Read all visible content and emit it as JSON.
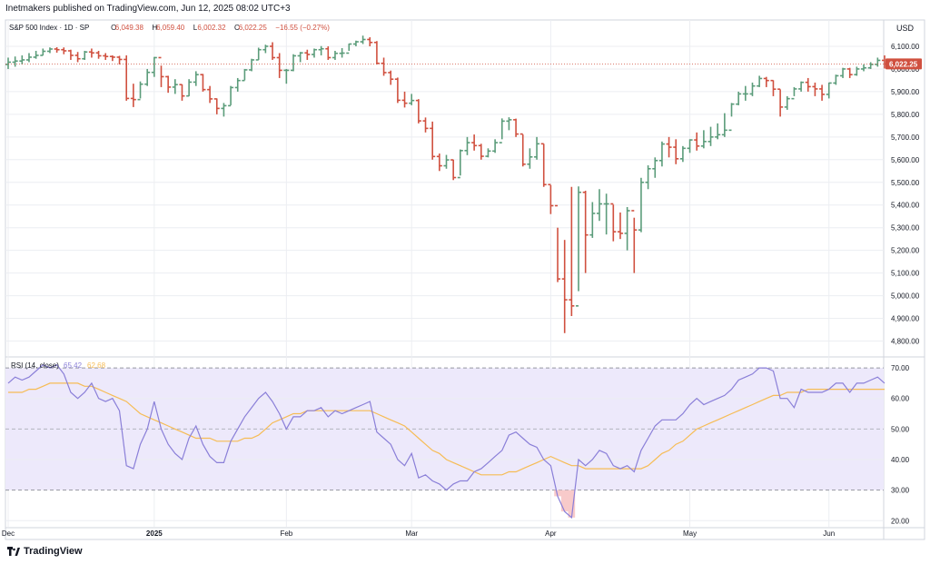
{
  "header": {
    "publisher_text": "Inetmakers published on TradingView.com, Jun 12, 2025 08:02 UTC+3"
  },
  "footer": {
    "brand": "TradingView"
  },
  "colors": {
    "up": "#5b9c7a",
    "down": "#d0503f",
    "rsi_line": "#8a7fd8",
    "rsi_ma": "#f6bc55",
    "rsi_band": "#ede9fb",
    "grid": "#eceef2",
    "price_tag": "#d0503f"
  },
  "chart_data": [
    {
      "type": "ohlc",
      "title": "S&P 500 Index · 1D · SP",
      "legend": {
        "open_label": "O",
        "open": "6,049.38",
        "high_label": "H",
        "high": "6,059.40",
        "low_label": "L",
        "low": "6,002.32",
        "close_label": "C",
        "close": "6,022.25",
        "change": "−16.55 (−0.27%)"
      },
      "currency_label": "USD",
      "last_price_label": "6,022.25",
      "last_price": 6022.25,
      "ylim": [
        4750,
        6160
      ],
      "y_ticks": [
        6100,
        6000,
        5900,
        5800,
        5700,
        5600,
        5500,
        5400,
        5300,
        5200,
        5100,
        5000,
        4900,
        4800
      ],
      "y_tick_labels": [
        "6,100.00",
        "6,000.00",
        "5,900.00",
        "5,800.00",
        "5,700.00",
        "5,600.00",
        "5,500.00",
        "5,400.00",
        "5,300.00",
        "5,200.00",
        "5,100.00",
        "5,000.00",
        "4,900.00",
        "4,800.00"
      ],
      "x_labels": [
        {
          "index": 0,
          "label": "Dec",
          "bold": false
        },
        {
          "index": 21,
          "label": "2025",
          "bold": true
        },
        {
          "index": 40,
          "label": "Feb",
          "bold": false
        },
        {
          "index": 58,
          "label": "Mar",
          "bold": false
        },
        {
          "index": 78,
          "label": "Apr",
          "bold": false
        },
        {
          "index": 98,
          "label": "May",
          "bold": false
        },
        {
          "index": 118,
          "label": "Jun",
          "bold": false
        }
      ],
      "closes": [
        6030,
        6035,
        6040,
        6052,
        6060,
        6078,
        6088,
        6085,
        6080,
        6060,
        6045,
        6075,
        6071,
        6058,
        6055,
        6052,
        6042,
        5870,
        5865,
        5933,
        5985,
        6050,
        5966,
        5920,
        5931,
        5881,
        5942,
        5975,
        5909,
        5868,
        5826,
        5838,
        5918,
        5949,
        5996,
        6040,
        6085,
        6100,
        6050,
        5994,
        5994,
        6058,
        6071,
        6064,
        6085,
        6089,
        6050,
        6069,
        6070,
        6110,
        6120,
        6130,
        6117,
        6025,
        5984,
        5955,
        5862,
        5849,
        5861,
        5771,
        5738,
        5614,
        5573,
        5599,
        5521,
        5640,
        5675,
        5662,
        5615,
        5638,
        5675,
        5770,
        5776,
        5713,
        5580,
        5612,
        5670,
        5490,
        5397,
        5074,
        4982,
        4955,
        5456,
        5268,
        5363,
        5405,
        5405,
        5282,
        5275,
        5375,
        5290,
        5500,
        5560,
        5596,
        5669,
        5655,
        5604,
        5650,
        5687,
        5660,
        5680,
        5700,
        5710,
        5730,
        5845,
        5890,
        5890,
        5925,
        5958,
        5949,
        5911,
        5832,
        5869,
        5912,
        5941,
        5922,
        5912,
        5888,
        5938,
        5970,
        6000,
        5975,
        6000,
        6005,
        6020,
        6038,
        6022
      ],
      "highs": [
        6050,
        6055,
        6060,
        6070,
        6080,
        6090,
        6095,
        6096,
        6095,
        6085,
        6075,
        6080,
        6090,
        6080,
        6070,
        6060,
        6058,
        6060,
        5935,
        5945,
        6000,
        6053,
        6015,
        5970,
        5955,
        5932,
        5955,
        5990,
        5978,
        5925,
        5870,
        5850,
        5925,
        5960,
        6000,
        6045,
        6094,
        6107,
        6118,
        6070,
        6000,
        6065,
        6075,
        6085,
        6090,
        6101,
        6100,
        6080,
        6092,
        6112,
        6125,
        6147,
        6140,
        6123,
        6050,
        5993,
        5962,
        5900,
        5890,
        5867,
        5786,
        5768,
        5627,
        5621,
        5600,
        5645,
        5700,
        5711,
        5670,
        5650,
        5690,
        5782,
        5787,
        5781,
        5711,
        5650,
        5700,
        5670,
        5488,
        5300,
        5246,
        5480,
        5482,
        5463,
        5413,
        5470,
        5450,
        5402,
        5367,
        5391,
        5344,
        5520,
        5575,
        5610,
        5680,
        5700,
        5690,
        5660,
        5690,
        5720,
        5730,
        5745,
        5760,
        5805,
        5850,
        5900,
        5925,
        5940,
        5970,
        5965,
        5950,
        5910,
        5880,
        5920,
        5945,
        5960,
        5940,
        5930,
        5940,
        5975,
        6005,
        6005,
        6010,
        6020,
        6030,
        6050,
        6060
      ],
      "lows": [
        6000,
        6010,
        6020,
        6030,
        6045,
        6060,
        6070,
        6072,
        6065,
        6040,
        6030,
        6040,
        6050,
        6045,
        6040,
        6035,
        6020,
        5860,
        5832,
        5870,
        5925,
        5965,
        5920,
        5895,
        5890,
        5860,
        5880,
        5925,
        5900,
        5850,
        5800,
        5790,
        5840,
        5900,
        5950,
        5990,
        6040,
        6070,
        6040,
        5960,
        5935,
        5990,
        6030,
        6040,
        6050,
        6060,
        6040,
        6040,
        6050,
        6080,
        6100,
        6110,
        6100,
        6020,
        5970,
        5930,
        5850,
        5830,
        5840,
        5760,
        5720,
        5600,
        5550,
        5560,
        5510,
        5530,
        5620,
        5640,
        5600,
        5610,
        5630,
        5690,
        5730,
        5700,
        5570,
        5560,
        5600,
        5480,
        5360,
        5060,
        4835,
        4910,
        5020,
        5100,
        5255,
        5330,
        5270,
        5240,
        5250,
        5200,
        5100,
        5280,
        5470,
        5520,
        5570,
        5610,
        5580,
        5590,
        5630,
        5640,
        5650,
        5660,
        5690,
        5700,
        5790,
        5840,
        5860,
        5880,
        5920,
        5920,
        5880,
        5790,
        5820,
        5880,
        5900,
        5900,
        5880,
        5860,
        5870,
        5930,
        5960,
        5960,
        5970,
        5990,
        6000,
        6010,
        6002
      ]
    },
    {
      "type": "line",
      "title": "RSI (14, close)",
      "value_rsi": "65.42",
      "value_ma": "62.68",
      "ylim": [
        18,
        73
      ],
      "y_ticks": [
        70,
        60,
        50,
        40,
        30,
        20
      ],
      "y_tick_labels": [
        "70.00",
        "60.00",
        "50.00",
        "40.00",
        "30.00",
        "20.00"
      ],
      "band": [
        30,
        70
      ],
      "series": [
        {
          "name": "RSI",
          "values": [
            65,
            67,
            66,
            67,
            69,
            71,
            70,
            71,
            68,
            62,
            60,
            62,
            65,
            60,
            59,
            60,
            56,
            38,
            37,
            45,
            50,
            59,
            50,
            45,
            42,
            40,
            47,
            51,
            45,
            41,
            39,
            39,
            46,
            50,
            54,
            57,
            60,
            62,
            59,
            55,
            50,
            54,
            54,
            56,
            56,
            57,
            54,
            56,
            55,
            56,
            57,
            58,
            59,
            49,
            47,
            45,
            40,
            38,
            42,
            34,
            35,
            33,
            32,
            30,
            32,
            33,
            33,
            36,
            37,
            39,
            41,
            43,
            48,
            49,
            47,
            45,
            44,
            40,
            38,
            28,
            23,
            21,
            40,
            38,
            40,
            43,
            42,
            38,
            37,
            38,
            36,
            43,
            47,
            51,
            53,
            53,
            53,
            55,
            58,
            60,
            58,
            59,
            60,
            61,
            63,
            66,
            67,
            68,
            70,
            70,
            69,
            60,
            60,
            57,
            63,
            62,
            62,
            62,
            63,
            65,
            65,
            62,
            65,
            65,
            66,
            67,
            65
          ]
        },
        {
          "name": "RSI MA",
          "values": [
            62,
            62,
            62,
            63,
            63,
            64,
            65,
            65,
            65,
            65,
            65,
            64,
            64,
            63,
            62,
            61,
            60,
            59,
            57,
            55,
            54,
            53,
            52,
            51,
            50,
            49,
            48,
            47,
            47,
            47,
            46,
            46,
            46,
            46,
            47,
            47,
            48,
            50,
            52,
            53,
            54,
            55,
            55,
            56,
            56,
            56,
            56,
            56,
            56,
            56,
            56,
            56,
            56,
            55,
            54,
            53,
            52,
            51,
            49,
            47,
            45,
            43,
            42,
            40,
            39,
            38,
            37,
            36,
            35,
            35,
            35,
            35,
            36,
            36,
            37,
            38,
            39,
            40,
            41,
            40,
            39,
            38,
            38,
            37,
            37,
            37,
            37,
            37,
            37,
            37,
            37,
            37,
            38,
            40,
            42,
            43,
            45,
            46,
            48,
            50,
            51,
            52,
            53,
            54,
            55,
            56,
            57,
            58,
            59,
            60,
            61,
            61,
            62,
            62,
            62,
            63,
            63,
            63,
            63,
            63,
            63,
            63,
            63,
            63,
            63,
            63,
            63
          ]
        }
      ]
    }
  ]
}
